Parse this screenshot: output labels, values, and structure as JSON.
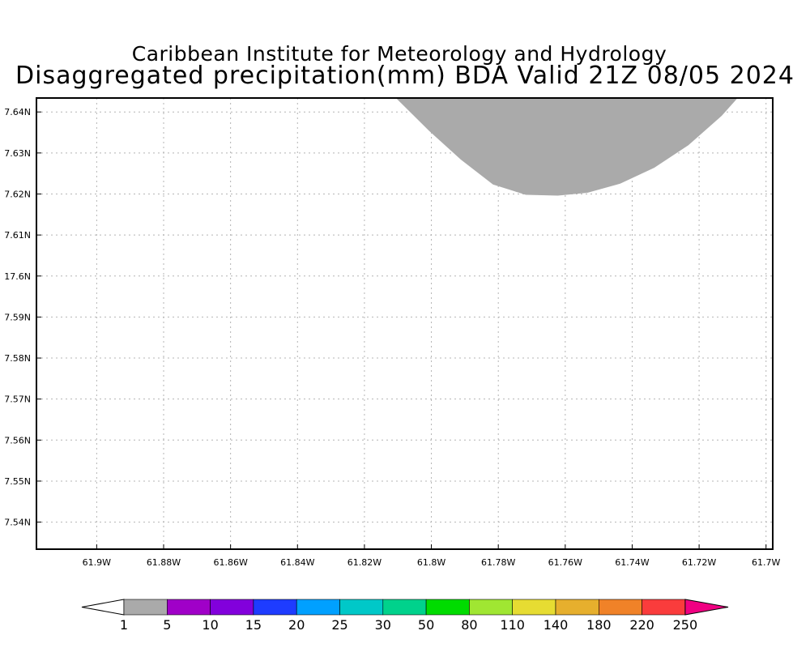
{
  "header": {
    "institute": "Caribbean Institute for Meteorology and Hydrology",
    "title": "Disaggregated precipitation(mm) BDA Valid 21Z 08/05 2024"
  },
  "map": {
    "lon_range": [
      -61.918,
      -61.698
    ],
    "lat_range": [
      17.5334,
      17.6434
    ],
    "x_ticks": [
      {
        "lon": -61.9,
        "label": "61.9W"
      },
      {
        "lon": -61.88,
        "label": "61.88W"
      },
      {
        "lon": -61.86,
        "label": "61.86W"
      },
      {
        "lon": -61.84,
        "label": "61.84W"
      },
      {
        "lon": -61.82,
        "label": "61.82W"
      },
      {
        "lon": -61.8,
        "label": "61.8W"
      },
      {
        "lon": -61.78,
        "label": "61.78W"
      },
      {
        "lon": -61.76,
        "label": "61.76W"
      },
      {
        "lon": -61.74,
        "label": "61.74W"
      },
      {
        "lon": -61.72,
        "label": "61.72W"
      },
      {
        "lon": -61.7,
        "label": "61.7W"
      }
    ],
    "y_ticks": [
      {
        "lat": 17.64,
        "label": "7.64N"
      },
      {
        "lat": 17.63,
        "label": "7.63N"
      },
      {
        "lat": 17.62,
        "label": "7.62N"
      },
      {
        "lat": 17.61,
        "label": "7.61N"
      },
      {
        "lat": 17.6,
        "label": "17.6N"
      },
      {
        "lat": 17.59,
        "label": "7.59N"
      },
      {
        "lat": 17.58,
        "label": "7.58N"
      },
      {
        "lat": 17.57,
        "label": "7.57N"
      },
      {
        "lat": 17.56,
        "label": "7.56N"
      },
      {
        "lat": 17.55,
        "label": "7.55N"
      },
      {
        "lat": 17.54,
        "label": "7.54N"
      }
    ],
    "grid": true,
    "precip_area": {
      "range_mm": "1-5",
      "color": "#aaaaaa",
      "boundary": [
        [
          -61.8106,
          17.6434
        ],
        [
          -61.8007,
          17.6354
        ],
        [
          -61.7912,
          17.6284
        ],
        [
          -61.7816,
          17.6223
        ],
        [
          -61.7718,
          17.6198
        ],
        [
          -61.7622,
          17.6196
        ],
        [
          -61.7534,
          17.6203
        ],
        [
          -61.7436,
          17.6225
        ],
        [
          -61.7334,
          17.6264
        ],
        [
          -61.7232,
          17.6319
        ],
        [
          -61.7132,
          17.6391
        ],
        [
          -61.7085,
          17.6434
        ]
      ]
    }
  },
  "colorbar": {
    "labels": [
      "1",
      "5",
      "10",
      "15",
      "20",
      "25",
      "30",
      "50",
      "80",
      "110",
      "140",
      "180",
      "220",
      "250"
    ],
    "colors": [
      "#aaaaaa",
      "#a000c8",
      "#8200dc",
      "#1e3cff",
      "#00a0ff",
      "#00c8c8",
      "#00d28c",
      "#00dc00",
      "#a0e632",
      "#e6dc32",
      "#e6af2d",
      "#f08228",
      "#fa3c3c"
    ],
    "under_color": "#ffffff",
    "over_color": "#f00082"
  }
}
